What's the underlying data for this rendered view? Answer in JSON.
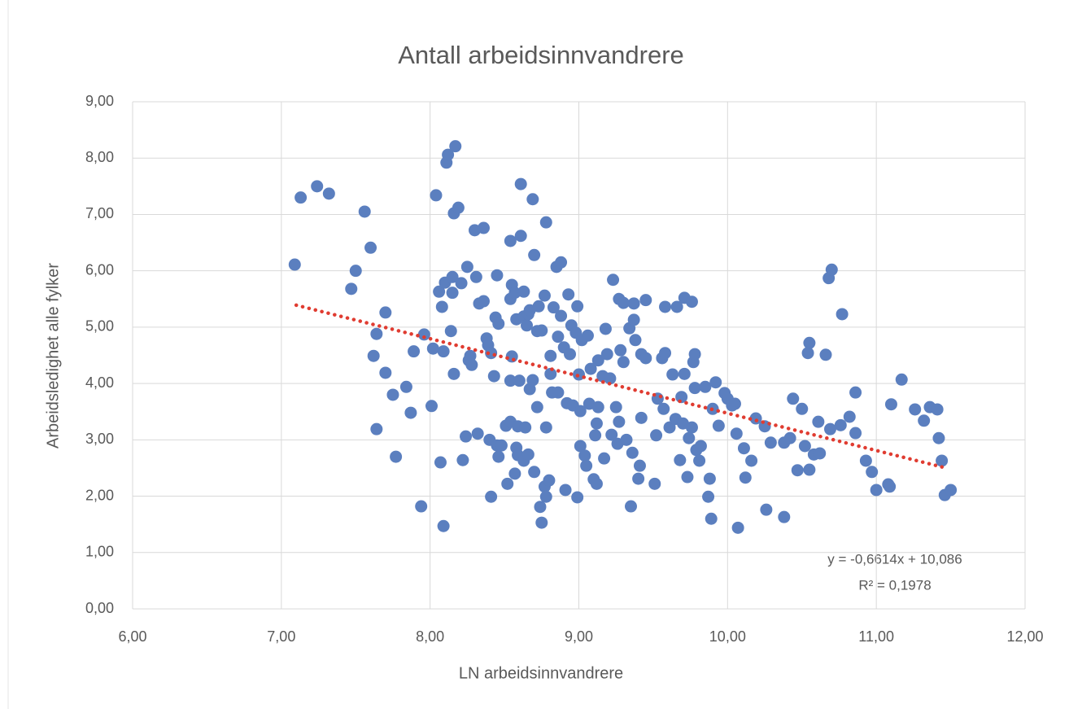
{
  "chart_data": {
    "type": "scatter",
    "title": "Antall arbeidsinnvandrere",
    "x_label": "LN arbeidsinnvandrere",
    "y_label": "Arbeidsledighet alle fylker",
    "color": "#5b7fbf",
    "grid": true,
    "xlim": [
      6,
      12
    ],
    "ylim": [
      0,
      9
    ],
    "xticks": [
      {
        "value": 6,
        "label": "6,00"
      },
      {
        "value": 7,
        "label": "7,00"
      },
      {
        "value": 8,
        "label": "8,00"
      },
      {
        "value": 9,
        "label": "9,00"
      },
      {
        "value": 10,
        "label": "10,00"
      },
      {
        "value": 11,
        "label": "11,00"
      },
      {
        "value": 12,
        "label": "12,00"
      }
    ],
    "yticks": [
      {
        "value": 0,
        "label": "0,00"
      },
      {
        "value": 1,
        "label": "1,00"
      },
      {
        "value": 2,
        "label": "2,00"
      },
      {
        "value": 3,
        "label": "3,00"
      },
      {
        "value": 4,
        "label": "4,00"
      },
      {
        "value": 5,
        "label": "5,00"
      },
      {
        "value": 6,
        "label": "6,00"
      },
      {
        "value": 7,
        "label": "7,00"
      },
      {
        "value": 8,
        "label": "8,00"
      },
      {
        "value": 9,
        "label": "9,00"
      }
    ],
    "x": [
      7.09,
      7.13,
      7.24,
      7.32,
      7.47,
      7.5,
      7.56,
      7.6,
      7.62,
      7.64,
      7.64,
      7.7,
      7.7,
      7.75,
      7.77,
      7.84,
      7.87,
      7.89,
      7.94,
      7.96,
      8.01,
      8.02,
      8.04,
      8.06,
      8.07,
      8.08,
      8.09,
      8.09,
      8.1,
      8.11,
      8.12,
      8.15,
      8.14,
      8.15,
      8.16,
      8.17,
      8.16,
      8.19,
      8.21,
      8.22,
      8.24,
      8.25,
      8.26,
      8.27,
      8.28,
      8.3,
      8.31,
      8.32,
      8.33,
      8.36,
      8.36,
      8.38,
      8.39,
      8.4,
      8.41,
      8.41,
      8.43,
      8.44,
      8.45,
      8.45,
      8.46,
      8.46,
      8.48,
      8.51,
      8.52,
      8.54,
      8.54,
      8.54,
      8.55,
      8.54,
      8.55,
      8.57,
      8.58,
      8.57,
      8.59,
      8.58,
      8.59,
      8.6,
      8.61,
      8.61,
      8.63,
      8.63,
      8.63,
      8.64,
      8.65,
      8.66,
      8.66,
      8.67,
      8.67,
      8.69,
      8.69,
      8.7,
      8.7,
      8.72,
      8.72,
      8.73,
      8.74,
      8.75,
      8.75,
      8.77,
      8.78,
      8.77,
      8.78,
      8.78,
      8.8,
      8.81,
      8.81,
      8.82,
      8.83,
      8.85,
      8.86,
      8.86,
      8.88,
      8.88,
      8.9,
      8.91,
      8.92,
      8.93,
      8.94,
      8.95,
      8.96,
      8.98,
      8.99,
      8.99,
      9.0,
      9.01,
      9.01,
      9.02,
      9.04,
      9.05,
      9.06,
      9.07,
      9.08,
      9.1,
      9.11,
      9.12,
      9.12,
      9.13,
      9.13,
      9.16,
      9.17,
      9.18,
      9.19,
      9.21,
      9.22,
      9.23,
      9.25,
      9.26,
      9.27,
      9.27,
      9.28,
      9.3,
      9.3,
      9.32,
      9.34,
      9.35,
      9.36,
      9.37,
      9.37,
      9.38,
      9.4,
      9.41,
      9.42,
      9.42,
      9.45,
      9.45,
      9.51,
      9.52,
      9.53,
      9.56,
      9.57,
      9.58,
      9.58,
      9.61,
      9.63,
      9.65,
      9.66,
      9.68,
      9.69,
      9.7,
      9.71,
      9.71,
      9.73,
      9.74,
      9.76,
      9.76,
      9.77,
      9.78,
      9.78,
      9.79,
      9.81,
      9.82,
      9.85,
      9.87,
      9.88,
      9.89,
      9.9,
      9.92,
      9.94,
      9.98,
      10.0,
      10.03,
      10.05,
      10.07,
      10.06,
      10.11,
      10.12,
      10.16,
      10.19,
      10.25,
      10.26,
      10.29,
      10.38,
      10.38,
      10.42,
      10.44,
      10.47,
      10.5,
      10.52,
      10.54,
      10.55,
      10.55,
      10.58,
      10.61,
      10.62,
      10.66,
      10.68,
      10.7,
      10.69,
      10.76,
      10.77,
      10.82,
      10.86,
      10.86,
      10.93,
      10.97,
      11.0,
      11.08,
      11.1,
      11.17,
      11.26,
      11.32,
      11.36,
      11.41,
      11.42,
      11.44,
      11.46,
      11.5,
      11.09
    ],
    "values": [
      6.11,
      7.3,
      7.5,
      7.37,
      5.68,
      6.0,
      7.05,
      6.41,
      4.49,
      4.88,
      3.19,
      5.26,
      4.19,
      3.8,
      2.7,
      3.94,
      3.48,
      4.57,
      1.82,
      4.87,
      3.6,
      4.62,
      7.34,
      5.63,
      2.6,
      5.36,
      4.57,
      1.47,
      5.79,
      7.92,
      8.06,
      5.61,
      4.93,
      5.89,
      7.02,
      8.21,
      4.17,
      7.12,
      5.78,
      2.64,
      3.06,
      6.07,
      4.41,
      4.49,
      4.33,
      6.72,
      5.89,
      3.11,
      5.42,
      6.76,
      5.46,
      4.8,
      4.68,
      3.0,
      4.54,
      1.99,
      4.13,
      5.17,
      2.9,
      5.92,
      5.06,
      2.7,
      2.9,
      3.25,
      2.22,
      5.5,
      4.05,
      6.53,
      4.48,
      3.32,
      5.75,
      2.4,
      2.86,
      5.61,
      3.24,
      5.14,
      2.73,
      4.05,
      7.54,
      6.62,
      5.19,
      2.63,
      5.63,
      3.22,
      5.03,
      2.74,
      5.23,
      5.3,
      3.9,
      4.06,
      7.27,
      6.28,
      2.43,
      4.93,
      3.58,
      5.37,
      1.81,
      1.53,
      4.94,
      2.17,
      6.86,
      5.56,
      3.22,
      1.99,
      2.28,
      4.49,
      4.17,
      3.84,
      5.35,
      6.07,
      4.83,
      3.84,
      6.15,
      5.2,
      4.64,
      2.11,
      3.65,
      5.58,
      4.52,
      5.03,
      3.61,
      4.9,
      5.37,
      1.98,
      4.16,
      3.51,
      2.89,
      4.77,
      2.72,
      2.54,
      4.85,
      3.64,
      4.26,
      2.3,
      3.08,
      3.29,
      2.22,
      4.41,
      3.58,
      4.13,
      2.67,
      4.97,
      4.52,
      4.09,
      3.09,
      5.84,
      3.58,
      2.93,
      5.5,
      3.32,
      4.59,
      5.43,
      4.38,
      3.0,
      4.98,
      1.82,
      2.77,
      5.42,
      5.13,
      4.77,
      2.31,
      2.54,
      3.39,
      4.52,
      5.48,
      4.45,
      2.22,
      3.08,
      3.73,
      4.45,
      3.55,
      4.54,
      5.36,
      3.22,
      4.16,
      3.37,
      5.36,
      2.64,
      3.76,
      3.29,
      4.17,
      5.52,
      2.34,
      3.03,
      3.22,
      5.45,
      4.38,
      4.52,
      3.92,
      2.82,
      2.63,
      2.89,
      3.94,
      1.99,
      2.31,
      1.6,
      3.55,
      4.02,
      3.25,
      3.83,
      3.73,
      3.61,
      3.64,
      1.44,
      3.11,
      2.85,
      2.33,
      2.63,
      3.38,
      3.24,
      1.76,
      2.95,
      2.95,
      1.63,
      3.03,
      3.73,
      2.46,
      3.55,
      2.89,
      4.54,
      4.72,
      2.47,
      2.74,
      3.32,
      2.76,
      4.51,
      5.87,
      6.02,
      3.19,
      3.26,
      5.23,
      3.41,
      3.84,
      3.12,
      2.63,
      2.43,
      2.11,
      2.21,
      3.63,
      4.07,
      3.54,
      3.34,
      3.58,
      3.54,
      3.03,
      2.63,
      2.02,
      2.11,
      2.17
    ],
    "trendline": {
      "slope": -0.6614,
      "intercept": 10.086,
      "x_range": [
        7.1,
        11.45
      ],
      "color": "#e03c31"
    },
    "annotations": [
      "y = -0,6614x + 10,086",
      "R² = 0,1978"
    ]
  }
}
